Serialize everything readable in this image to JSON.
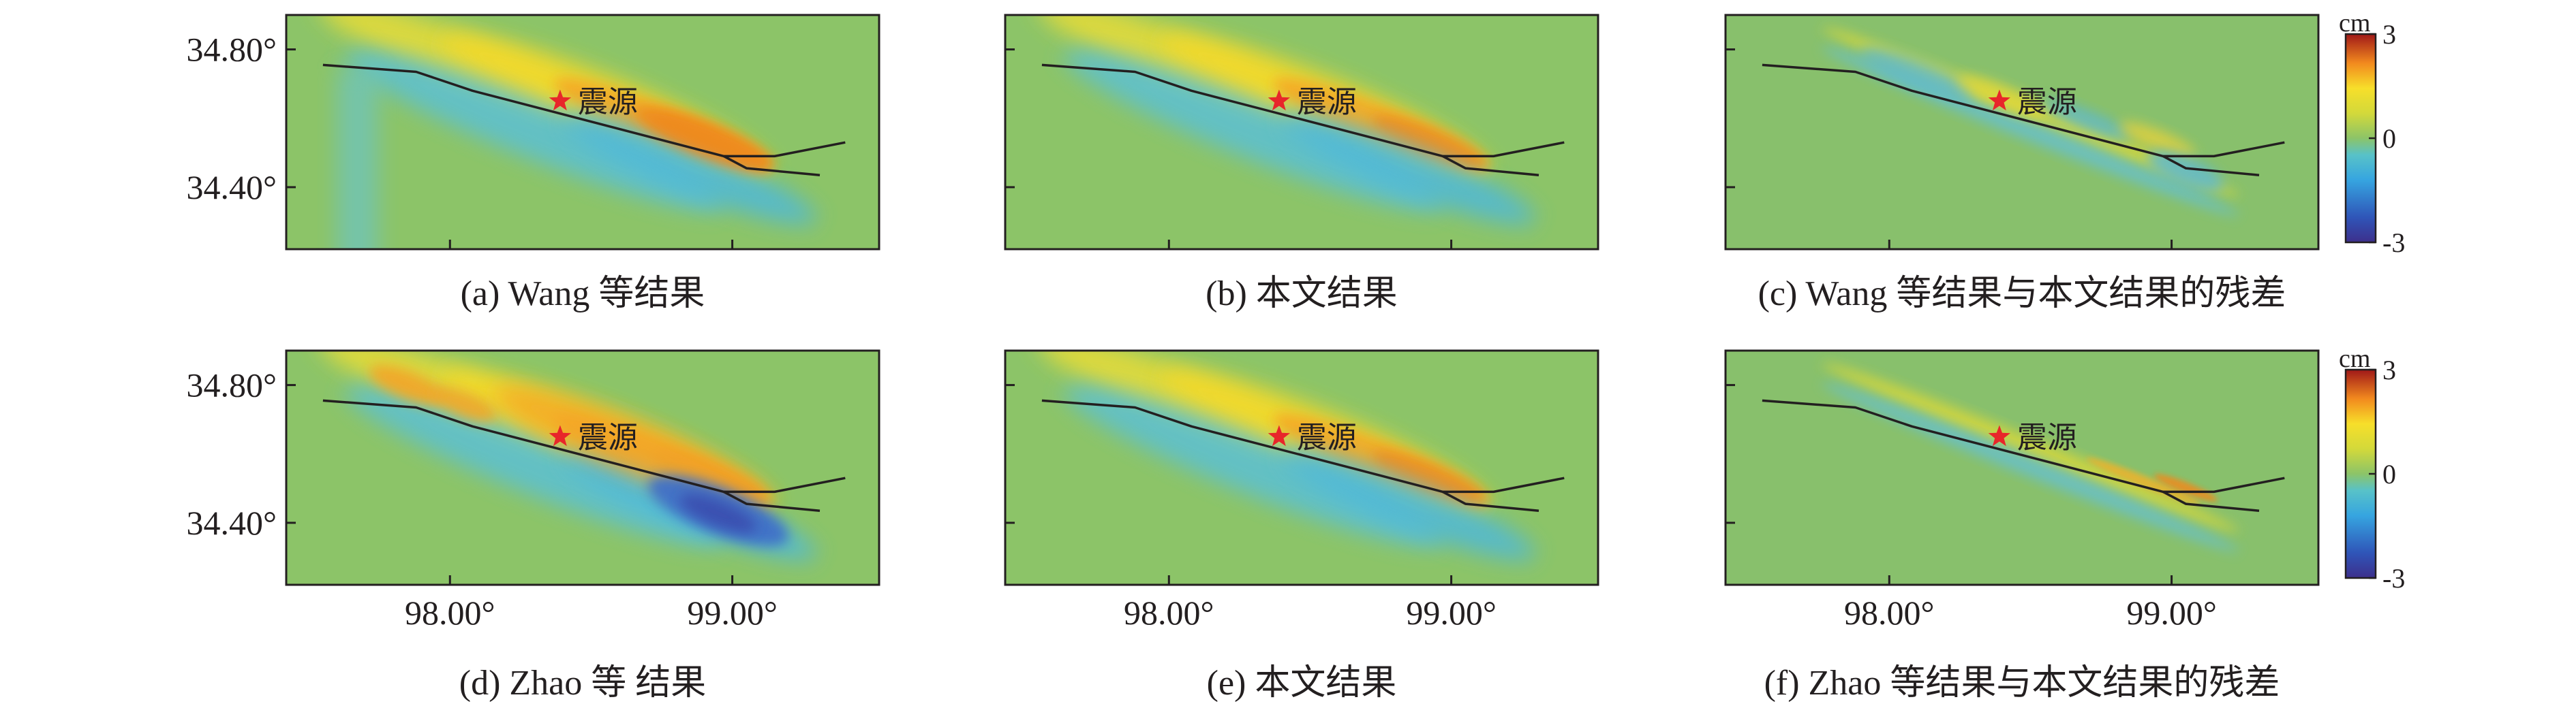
{
  "chart_data": {
    "type": "heatmap",
    "layout": {
      "rows": 2,
      "cols": 3
    },
    "x_axis": {
      "range": [
        97.42,
        99.52
      ],
      "ticks": [
        98.0,
        99.0
      ],
      "tick_labels": [
        "98.00°",
        "99.00°"
      ]
    },
    "y_axis": {
      "range": [
        34.22,
        34.9
      ],
      "ticks": [
        34.8,
        34.4
      ],
      "tick_labels": [
        "34.80°",
        "34.40°"
      ]
    },
    "epicenter": {
      "lon": 98.39,
      "lat": 34.65,
      "label": "震源"
    },
    "fault_traces": [
      [
        [
          97.55,
          34.755
        ],
        [
          97.88,
          34.735
        ],
        [
          98.08,
          34.68
        ],
        [
          98.97,
          34.49
        ],
        [
          99.15,
          34.49
        ],
        [
          99.4,
          34.53
        ]
      ],
      [
        [
          98.97,
          34.49
        ],
        [
          99.05,
          34.455
        ],
        [
          99.31,
          34.435
        ]
      ]
    ],
    "colorbar": {
      "unit": "cm",
      "range": [
        -3,
        3
      ],
      "ticks": [
        3,
        0,
        -3
      ],
      "tick_labels": [
        "3",
        "0",
        "-3"
      ],
      "colormap": "jet"
    },
    "panels": [
      {
        "id": "a",
        "caption": "(a) Wang 等结果",
        "kind": "model_wang"
      },
      {
        "id": "b",
        "caption": "(b)  本文结果",
        "kind": "model_ours"
      },
      {
        "id": "c",
        "caption": "(c) Wang 等结果与本文结果的残差",
        "kind": "residual_wang"
      },
      {
        "id": "d",
        "caption": "(d) Zhao 等 结果",
        "kind": "model_zhao"
      },
      {
        "id": "e",
        "caption": "(e)  本文结果",
        "kind": "model_ours"
      },
      {
        "id": "f",
        "caption": "(f) Zhao 等结果与本文结果的残差",
        "kind": "residual_zhao"
      }
    ]
  }
}
